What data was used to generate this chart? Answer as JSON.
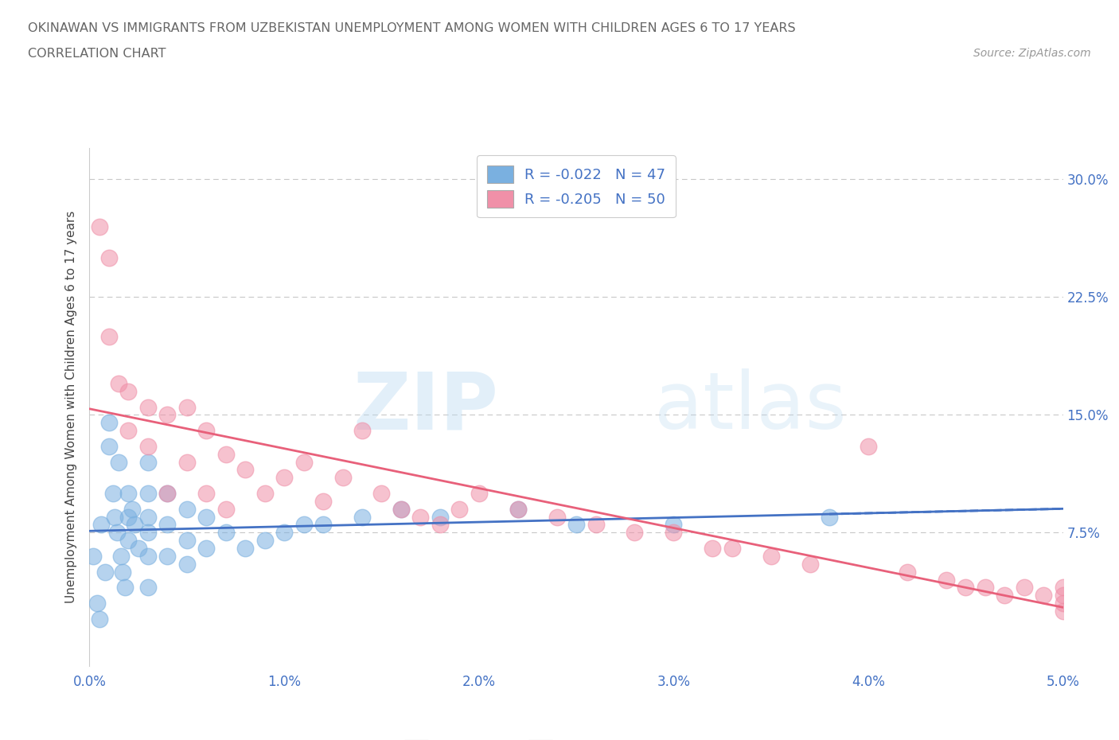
{
  "title_line1": "OKINAWAN VS IMMIGRANTS FROM UZBEKISTAN UNEMPLOYMENT AMONG WOMEN WITH CHILDREN AGES 6 TO 17 YEARS",
  "title_line2": "CORRELATION CHART",
  "source_text": "Source: ZipAtlas.com",
  "ylabel": "Unemployment Among Women with Children Ages 6 to 17 years",
  "xlim": [
    0.0,
    0.05
  ],
  "ylim": [
    -0.01,
    0.32
  ],
  "watermark_zip": "ZIP",
  "watermark_atlas": "atlas",
  "legend_label_ok": "R = -0.022   N = 47",
  "legend_label_uz": "R = -0.205   N = 50",
  "okinawan_color": "#7ab0e0",
  "uzbekistan_color": "#f090a8",
  "trend_okinawan_color": "#4472c4",
  "trend_uzbekistan_color": "#e8607a",
  "background_color": "#ffffff",
  "grid_color": "#c8c8c8",
  "okinawan_x": [
    0.0002,
    0.0004,
    0.0005,
    0.0006,
    0.0008,
    0.001,
    0.001,
    0.0012,
    0.0013,
    0.0014,
    0.0015,
    0.0016,
    0.0017,
    0.0018,
    0.002,
    0.002,
    0.002,
    0.0022,
    0.0023,
    0.0025,
    0.003,
    0.003,
    0.003,
    0.003,
    0.003,
    0.003,
    0.004,
    0.004,
    0.004,
    0.005,
    0.005,
    0.005,
    0.006,
    0.006,
    0.007,
    0.008,
    0.009,
    0.01,
    0.011,
    0.012,
    0.014,
    0.016,
    0.018,
    0.022,
    0.025,
    0.03,
    0.038
  ],
  "okinawan_y": [
    0.06,
    0.03,
    0.02,
    0.08,
    0.05,
    0.145,
    0.13,
    0.1,
    0.085,
    0.075,
    0.12,
    0.06,
    0.05,
    0.04,
    0.1,
    0.085,
    0.07,
    0.09,
    0.08,
    0.065,
    0.12,
    0.1,
    0.085,
    0.075,
    0.06,
    0.04,
    0.1,
    0.08,
    0.06,
    0.09,
    0.07,
    0.055,
    0.085,
    0.065,
    0.075,
    0.065,
    0.07,
    0.075,
    0.08,
    0.08,
    0.085,
    0.09,
    0.085,
    0.09,
    0.08,
    0.08,
    0.085
  ],
  "uzbekistan_x": [
    0.0005,
    0.001,
    0.001,
    0.0015,
    0.002,
    0.002,
    0.003,
    0.003,
    0.004,
    0.004,
    0.005,
    0.005,
    0.006,
    0.006,
    0.007,
    0.007,
    0.008,
    0.009,
    0.01,
    0.011,
    0.012,
    0.013,
    0.014,
    0.015,
    0.016,
    0.017,
    0.018,
    0.019,
    0.02,
    0.022,
    0.024,
    0.026,
    0.028,
    0.03,
    0.032,
    0.033,
    0.035,
    0.037,
    0.04,
    0.042,
    0.044,
    0.045,
    0.046,
    0.047,
    0.048,
    0.049,
    0.05,
    0.05,
    0.05,
    0.05
  ],
  "uzbekistan_y": [
    0.27,
    0.25,
    0.2,
    0.17,
    0.165,
    0.14,
    0.155,
    0.13,
    0.15,
    0.1,
    0.155,
    0.12,
    0.14,
    0.1,
    0.125,
    0.09,
    0.115,
    0.1,
    0.11,
    0.12,
    0.095,
    0.11,
    0.14,
    0.1,
    0.09,
    0.085,
    0.08,
    0.09,
    0.1,
    0.09,
    0.085,
    0.08,
    0.075,
    0.075,
    0.065,
    0.065,
    0.06,
    0.055,
    0.13,
    0.05,
    0.045,
    0.04,
    0.04,
    0.035,
    0.04,
    0.035,
    0.04,
    0.035,
    0.03,
    0.025
  ]
}
